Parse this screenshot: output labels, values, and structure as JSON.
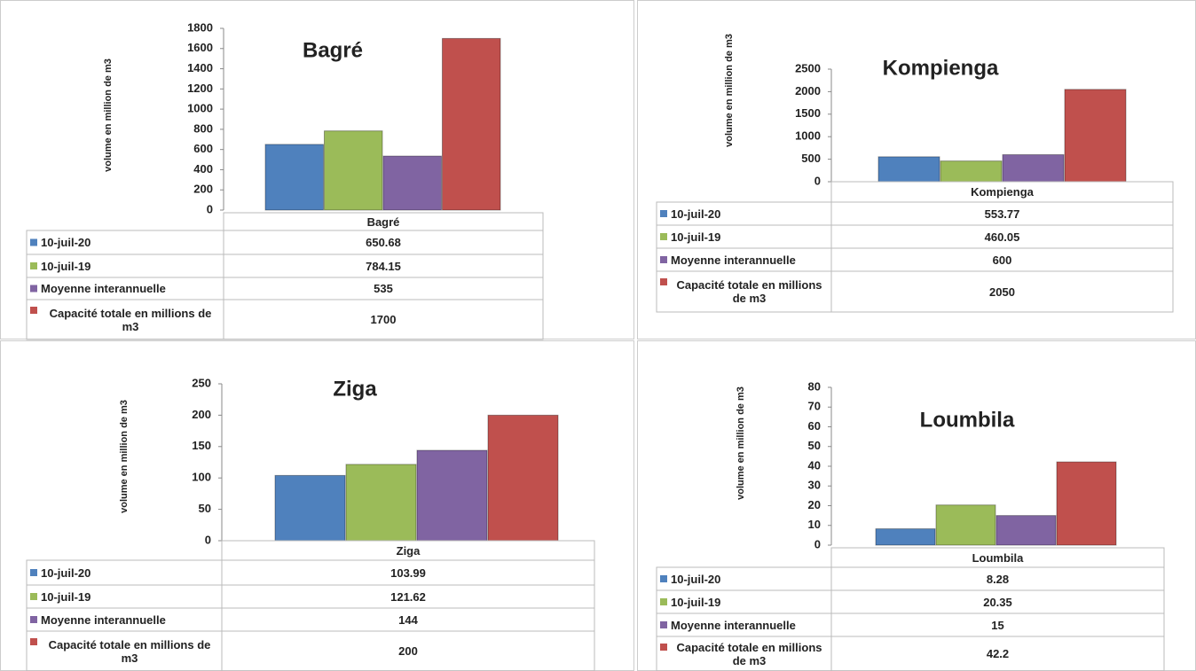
{
  "chart_data": [
    {
      "type": "bar",
      "title": "Bagré",
      "y_label": "volume en million de m3",
      "categories": [
        "Bagré"
      ],
      "series": [
        {
          "name": "10-juil-20",
          "color": "#4f81bd",
          "values": [
            650.68
          ]
        },
        {
          "name": "10-juil-19",
          "color": "#9bbb59",
          "values": [
            784.15
          ]
        },
        {
          "name": "Moyenne interannuelle",
          "color": "#8064a2",
          "values": [
            535
          ]
        },
        {
          "name": "Capacité totale en millions de m3",
          "color": "#c0504d",
          "values": [
            1700
          ]
        }
      ],
      "ylim": [
        0,
        1800
      ],
      "yticks": [
        0,
        200,
        400,
        600,
        800,
        1000,
        1200,
        1400,
        1600,
        1800
      ]
    },
    {
      "type": "bar",
      "title": "Kompienga",
      "y_label": "volume en million de m3",
      "categories": [
        "Kompienga"
      ],
      "series": [
        {
          "name": "10-juil-20",
          "color": "#4f81bd",
          "values": [
            553.77
          ]
        },
        {
          "name": "10-juil-19",
          "color": "#9bbb59",
          "values": [
            460.05
          ]
        },
        {
          "name": "Moyenne interannuelle",
          "color": "#8064a2",
          "values": [
            600
          ]
        },
        {
          "name": "Capacité totale en millions de m3",
          "color": "#c0504d",
          "values": [
            2050
          ]
        }
      ],
      "ylim": [
        0,
        2500
      ],
      "yticks": [
        0,
        500,
        1000,
        1500,
        2000,
        2500
      ]
    },
    {
      "type": "bar",
      "title": "Ziga",
      "y_label": "volume en million de m3",
      "categories": [
        "Ziga"
      ],
      "series": [
        {
          "name": "10-juil-20",
          "color": "#4f81bd",
          "values": [
            103.99
          ]
        },
        {
          "name": "10-juil-19",
          "color": "#9bbb59",
          "values": [
            121.62
          ]
        },
        {
          "name": "Moyenne interannuelle",
          "color": "#8064a2",
          "values": [
            144
          ]
        },
        {
          "name": "Capacité totale en millions de m3",
          "color": "#c0504d",
          "values": [
            200
          ]
        }
      ],
      "ylim": [
        0,
        250
      ],
      "yticks": [
        0,
        50,
        100,
        150,
        200,
        250
      ]
    },
    {
      "type": "bar",
      "title": "Loumbila",
      "y_label": "volume en million de m3",
      "categories": [
        "Loumbila"
      ],
      "series": [
        {
          "name": "10-juil-20",
          "color": "#4f81bd",
          "values": [
            8.28
          ]
        },
        {
          "name": "10-juil-19",
          "color": "#9bbb59",
          "values": [
            20.35
          ]
        },
        {
          "name": "Moyenne interannuelle",
          "color": "#8064a2",
          "values": [
            15
          ]
        },
        {
          "name": "Capacité totale en millions de m3",
          "color": "#c0504d",
          "values": [
            42.2
          ]
        }
      ],
      "ylim": [
        0,
        80
      ],
      "yticks": [
        0,
        10,
        20,
        30,
        40,
        50,
        60,
        70,
        80
      ]
    }
  ]
}
